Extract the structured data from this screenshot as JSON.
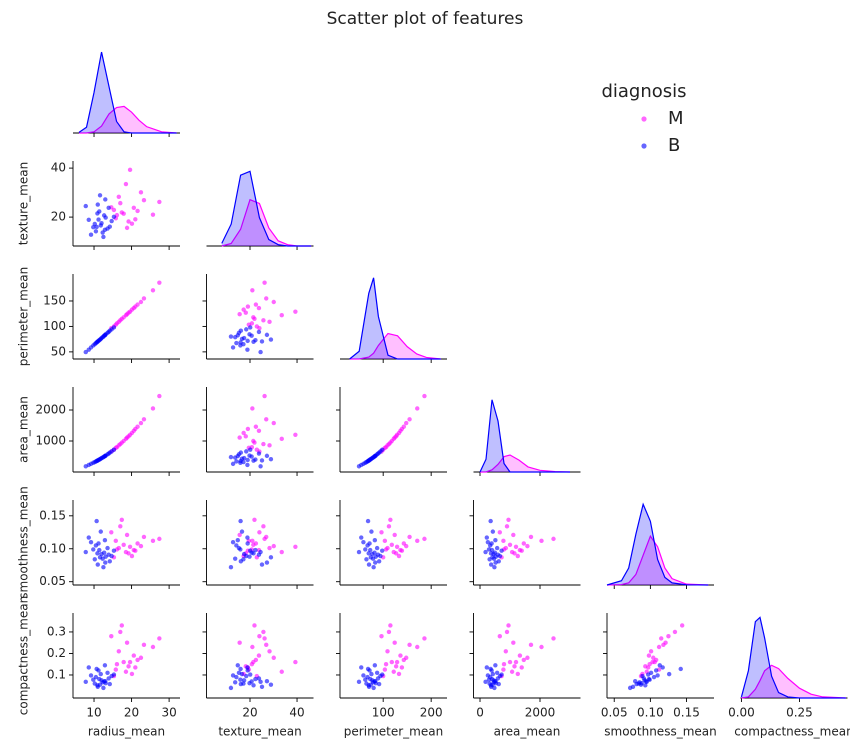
{
  "chart_data": {
    "type": "pairplot",
    "title": "Scatter plot of features",
    "legend_title": "diagnosis",
    "legend_loc": "upper right",
    "variables": [
      {
        "name": "radius_mean",
        "xlim": [
          4.4,
          32.9
        ],
        "xticks": [
          10,
          20,
          30
        ],
        "diag_ylim": [
          0,
          0.147
        ],
        "kde_x": [
          6,
          8,
          10,
          12,
          14,
          16,
          18,
          20,
          22,
          24,
          28,
          32
        ]
      },
      {
        "name": "texture_mean",
        "xlim": [
          1.5,
          47
        ],
        "xticks": [
          20,
          40
        ],
        "ylim": [
          8.2,
          42.9
        ],
        "yticks": [
          20,
          40
        ],
        "diag_ylim": [
          0,
          0.066
        ],
        "kde_x": [
          8,
          12,
          16,
          20,
          24,
          28,
          32,
          36,
          40,
          46
        ]
      },
      {
        "name": "perimeter_mean",
        "xlim": [
          10,
          233
        ],
        "xticks": [
          100,
          200
        ],
        "ylim": [
          36,
          203
        ],
        "yticks": [
          50,
          100,
          150
        ],
        "diag_ylim": [
          0,
          0.022
        ],
        "kde_x": [
          30,
          50,
          70,
          80,
          90,
          110,
          130,
          150,
          170,
          190,
          220
        ]
      },
      {
        "name": "area_mean",
        "xlim": [
          -217,
          3350
        ],
        "xticks": [
          0,
          2000
        ],
        "ylim": [
          0,
          2742
        ],
        "yticks": [
          1000,
          2000
        ],
        "diag_ylim": [
          0,
          0.002
        ],
        "kde_x": [
          0,
          200,
          400,
          600,
          800,
          1000,
          1300,
          1600,
          2000,
          2500,
          3000
        ]
      },
      {
        "name": "smoothness_mean",
        "xlim": [
          0.04,
          0.188
        ],
        "xticks": [
          0.05,
          {
            "value": 0.1,
            "label": "0.10"
          },
          0.15
        ],
        "ylim": [
          0.045,
          0.174
        ],
        "yticks": [
          0.05,
          {
            "value": 0.1,
            "label": "0.10"
          },
          0.15
        ],
        "diag_ylim": [
          0,
          20
        ],
        "kde_x": [
          0.04,
          0.06,
          0.07,
          0.08,
          0.09,
          0.1,
          0.11,
          0.12,
          0.13,
          0.15,
          0.18
        ]
      },
      {
        "name": "compactness_mean",
        "xlim": [
          -0.004,
          0.457
        ],
        "xticks": [
          {
            "value": 0,
            "label": "0.00"
          },
          0.25
        ],
        "ylim": [
          -0.007,
          0.388
        ],
        "yticks": [
          0.1,
          0.2,
          0.3
        ],
        "diag_ylim": [
          0,
          7.8
        ],
        "kde_x": [
          0,
          0.03,
          0.06,
          0.08,
          0.1,
          0.13,
          0.16,
          0.2,
          0.25,
          0.3,
          0.35,
          0.45
        ]
      }
    ],
    "series": [
      {
        "name": "M",
        "color": "#ff00ff",
        "values": [
          [
            17.9,
            21.4,
            118.0,
            1000,
            0.106,
            0.16
          ],
          [
            20.6,
            23.8,
            136.0,
            1330,
            0.098,
            0.19
          ],
          [
            15.8,
            19.5,
            103.5,
            780,
            0.112,
            0.125
          ],
          [
            23.3,
            26.9,
            155.0,
            1700,
            0.118,
            0.24
          ],
          [
            19.2,
            18.2,
            127.0,
            1150,
            0.093,
            0.14
          ],
          [
            16.6,
            28.3,
            109.0,
            860,
            0.101,
            0.21
          ],
          [
            21.6,
            22.5,
            143.0,
            1460,
            0.108,
            0.17
          ],
          [
            14.6,
            24.0,
            96.5,
            660,
            0.125,
            0.28
          ],
          [
            18.5,
            33.5,
            122.0,
            1070,
            0.095,
            0.115
          ],
          [
            25.7,
            21.0,
            171.0,
            2050,
            0.112,
            0.23
          ],
          [
            17.0,
            25.7,
            112.0,
            900,
            0.134,
            0.3
          ],
          [
            20.1,
            17.3,
            133.0,
            1260,
            0.089,
            0.105
          ],
          [
            16.1,
            20.8,
            106.0,
            800,
            0.099,
            0.15
          ],
          [
            22.5,
            30.1,
            148.0,
            1580,
            0.104,
            0.18
          ],
          [
            18.8,
            15.6,
            124.0,
            1110,
            0.121,
            0.25
          ],
          [
            15.3,
            22.9,
            100.0,
            720,
            0.087,
            0.095
          ],
          [
            27.4,
            26.2,
            186.0,
            2450,
            0.115,
            0.27
          ],
          [
            19.6,
            39.3,
            129.0,
            1200,
            0.103,
            0.16
          ],
          [
            17.4,
            21.9,
            115.0,
            950,
            0.144,
            0.33
          ],
          [
            21.0,
            19.1,
            139.0,
            1390,
            0.097,
            0.135
          ]
        ],
        "kde": [
          [
            0,
            0,
            0.002,
            0.012,
            0.033,
            0.044,
            0.046,
            0.036,
            0.022,
            0.011,
            0.002,
            0
          ],
          [
            0,
            0.002,
            0.013,
            0.036,
            0.033,
            0.014,
            0.004,
            0.001,
            0,
            0
          ],
          [
            0,
            0,
            0.0005,
            0.0015,
            0.0035,
            0.0066,
            0.006,
            0.0032,
            0.0013,
            0.0004,
            0
          ],
          [
            0,
            0,
            5e-05,
            0.00018,
            0.00036,
            0.0004,
            0.00028,
            0.00012,
            4e-05,
            1e-05,
            0
          ],
          [
            0,
            0.1,
            0.5,
            2.5,
            7,
            11.5,
            9,
            4,
            1.5,
            0.2,
            0
          ],
          [
            0,
            0.1,
            0.8,
            1.6,
            2.5,
            3,
            2.7,
            1.8,
            0.9,
            0.35,
            0.1,
            0
          ]
        ]
      },
      {
        "name": "B",
        "color": "#0000ff",
        "values": [
          [
            12.0,
            17.5,
            77.2,
            450,
            0.092,
            0.075
          ],
          [
            10.5,
            14.2,
            67.4,
            340,
            0.105,
            0.09
          ],
          [
            13.1,
            19.8,
            84.5,
            530,
            0.088,
            0.062
          ],
          [
            11.4,
            22.3,
            73.0,
            402,
            0.098,
            0.081
          ],
          [
            9.2,
            12.8,
            58.8,
            262,
            0.11,
            0.098
          ],
          [
            14.2,
            16.1,
            91.6,
            625,
            0.081,
            0.058
          ],
          [
            12.7,
            20.7,
            81.9,
            497,
            0.094,
            0.07
          ],
          [
            11.0,
            25.1,
            70.5,
            372,
            0.076,
            0.045
          ],
          [
            13.6,
            15.3,
            87.4,
            572,
            0.101,
            0.11
          ],
          [
            8.6,
            18.9,
            54.3,
            227,
            0.117,
            0.135
          ],
          [
            12.3,
            13.7,
            78.9,
            465,
            0.085,
            0.066
          ],
          [
            10.9,
            21.5,
            69.8,
            366,
            0.093,
            0.052
          ],
          [
            14.7,
            18.4,
            94.2,
            665,
            0.089,
            0.095
          ],
          [
            11.8,
            16.6,
            75.5,
            428,
            0.126,
            0.104
          ],
          [
            13.0,
            27.2,
            83.4,
            520,
            0.079,
            0.071
          ],
          [
            9.8,
            15.9,
            62.7,
            298,
            0.099,
            0.078
          ],
          [
            12.5,
            11.9,
            80.1,
            480,
            0.072,
            0.04
          ],
          [
            11.2,
            19.0,
            71.6,
            388,
            0.108,
            0.121
          ],
          [
            13.9,
            23.8,
            89.2,
            595,
            0.091,
            0.084
          ],
          [
            10.2,
            17.2,
            65.1,
            320,
            0.084,
            0.06
          ],
          [
            7.8,
            24.5,
            49.6,
            185,
            0.095,
            0.068
          ],
          [
            12.9,
            14.8,
            82.6,
            512,
            0.113,
            0.145
          ],
          [
            11.6,
            28.9,
            74.1,
            414,
            0.087,
            0.055
          ],
          [
            15.3,
            20.1,
            98.0,
            720,
            0.097,
            0.102
          ],
          [
            10.7,
            16.0,
            68.5,
            355,
            0.142,
            0.128
          ]
        ],
        "kde": [
          [
            0.001,
            0.01,
            0.07,
            0.14,
            0.08,
            0.02,
            0.002,
            0,
            0,
            0,
            0,
            0
          ],
          [
            0.002,
            0.017,
            0.055,
            0.058,
            0.022,
            0.005,
            0.001,
            0,
            0,
            0
          ],
          [
            0,
            0.002,
            0.017,
            0.021,
            0.011,
            0.001,
            0,
            0,
            0,
            0,
            0
          ],
          [
            0,
            0.0003,
            0.0017,
            0.0012,
            0.0002,
            0,
            0,
            0,
            0,
            0,
            0
          ],
          [
            0,
            1,
            4,
            12,
            19,
            15,
            6,
            1.8,
            0.5,
            0.05,
            0
          ],
          [
            0.1,
            2.5,
            7,
            7.4,
            5.5,
            2,
            0.5,
            0.1,
            0,
            0,
            0,
            0
          ]
        ]
      }
    ]
  }
}
